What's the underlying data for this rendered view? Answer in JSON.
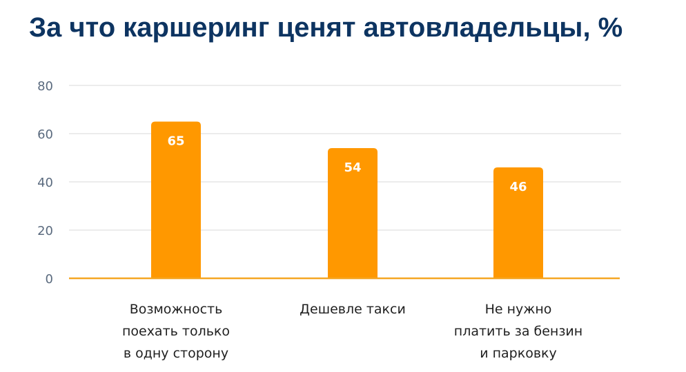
{
  "chart_data": {
    "type": "bar",
    "title": "За что каршеринг ценят автовладельцы, %",
    "categories": [
      [
        "Возможность",
        "поехать только",
        "в одну сторону"
      ],
      [
        "Дешевле такси"
      ],
      [
        "Не нужно",
        "платить за бензин",
        "и парковку"
      ]
    ],
    "values": [
      65,
      54,
      46
    ],
    "value_labels": [
      "65",
      "54",
      "46"
    ],
    "ylim": [
      0,
      80
    ],
    "yticks": [
      "0",
      "20",
      "40",
      "60",
      "80"
    ],
    "grid": true,
    "colors": {
      "bar": "#ff9800",
      "baseline": "#f5a623",
      "grid": "#e6e6e6",
      "title": "#0d3461"
    }
  }
}
